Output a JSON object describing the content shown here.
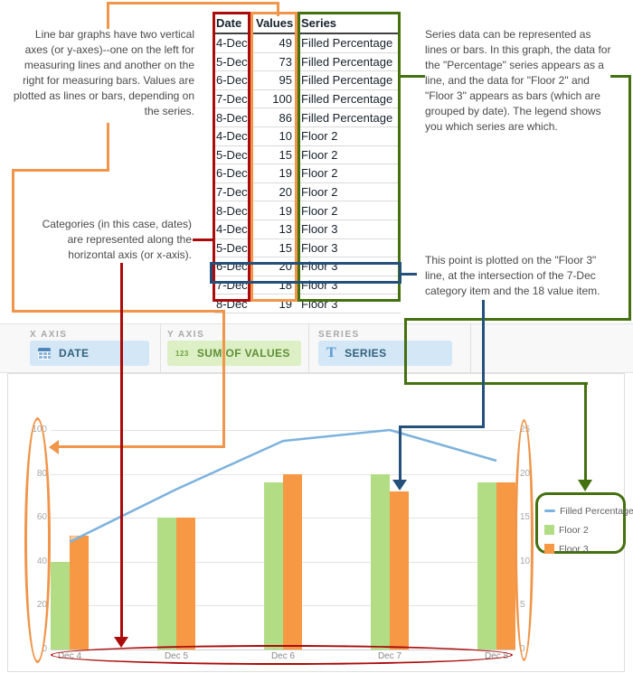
{
  "annotations": {
    "top_left": "Line bar graphs have two vertical axes (or y-axes)--one on the left for measuring lines and another on the right for measuring bars. Values are plotted as lines or bars, depending on the series.",
    "mid_left": "Categories (in this case, dates) are represented along the horizontal axis (or x-axis).",
    "top_right": "Series data can be represented as lines or bars. In this graph, the data for the \"Percentage\" series appears as a line, and the data for \"Floor 2\" and \"Floor 3\" appears as bars (which are grouped by date). The legend shows you which series are which.",
    "mid_right": "This point is plotted on the \"Floor 3\" line, at the intersection of the 7-Dec category item and the 18 value item."
  },
  "table": {
    "headers": [
      "Date",
      "Values",
      "Series"
    ],
    "rows": [
      [
        "4-Dec",
        "49",
        "Filled Percentage"
      ],
      [
        "5-Dec",
        "73",
        "Filled Percentage"
      ],
      [
        "6-Dec",
        "95",
        "Filled Percentage"
      ],
      [
        "7-Dec",
        "100",
        "Filled Percentage"
      ],
      [
        "8-Dec",
        "86",
        "Filled Percentage"
      ],
      [
        "4-Dec",
        "10",
        "Floor 2"
      ],
      [
        "5-Dec",
        "15",
        "Floor 2"
      ],
      [
        "6-Dec",
        "19",
        "Floor 2"
      ],
      [
        "7-Dec",
        "20",
        "Floor 2"
      ],
      [
        "8-Dec",
        "19",
        "Floor 2"
      ],
      [
        "4-Dec",
        "13",
        "Floor 3"
      ],
      [
        "5-Dec",
        "15",
        "Floor 3"
      ],
      [
        "6-Dec",
        "20",
        "Floor 3"
      ],
      [
        "7-Dec",
        "18",
        "Floor 3"
      ],
      [
        "8-Dec",
        "19",
        "Floor 3"
      ]
    ],
    "highlighted_row": 13
  },
  "panel": {
    "sections": [
      {
        "label": "X AXIS",
        "field": "DATE",
        "icon": "calendar-icon",
        "style": "blue"
      },
      {
        "label": "Y AXIS",
        "field": "SUM OF VALUES",
        "icon": "number-123-icon",
        "style": "green"
      },
      {
        "label": "SERIES",
        "field": "SERIES",
        "icon": "text-T-icon",
        "style": "blue"
      }
    ]
  },
  "chart_data": {
    "type": "combo line+bar",
    "categories": [
      "Dec 4",
      "Dec 5",
      "Dec 6",
      "Dec 7",
      "Dec 8"
    ],
    "series": [
      {
        "name": "Filled Percentage",
        "type": "line",
        "axis": "left",
        "values": [
          49,
          73,
          95,
          100,
          86
        ],
        "color": "#7CB2DE"
      },
      {
        "name": "Floor 2",
        "type": "bar",
        "axis": "right",
        "values": [
          10,
          15,
          19,
          20,
          19
        ],
        "color": "#B2DD84"
      },
      {
        "name": "Floor 3",
        "type": "bar",
        "axis": "right",
        "values": [
          13,
          15,
          20,
          18,
          19
        ],
        "color": "#F79844"
      }
    ],
    "left_axis": {
      "min": 0,
      "max": 100,
      "ticks": [
        0,
        20,
        40,
        60,
        80,
        100
      ]
    },
    "right_axis": {
      "min": 0,
      "max": 25,
      "ticks": [
        0,
        5,
        10,
        15,
        20,
        25
      ]
    },
    "grid": true,
    "legend_position": "right",
    "highlighted_point": {
      "category": "Dec 7",
      "series": "Floor 3",
      "value": 18
    }
  },
  "colors": {
    "annotation_orange": "#F0954A",
    "annotation_red": "#AB0B0B",
    "annotation_green": "#44700F",
    "annotation_blue": "#24507A",
    "bar_green": "#B2DD84",
    "bar_orange": "#F79844",
    "line_blue": "#7CB2DE"
  }
}
